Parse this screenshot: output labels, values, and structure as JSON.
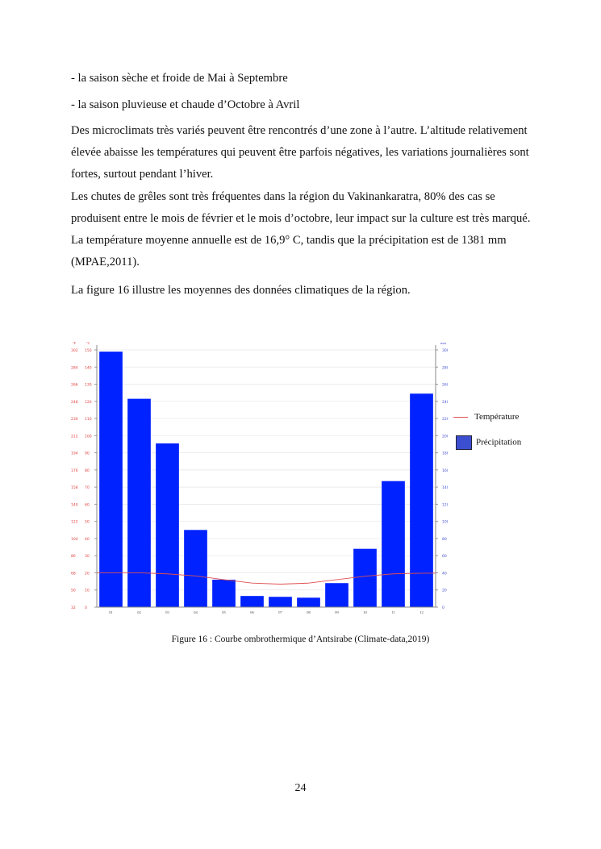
{
  "paragraphs": [
    "- la saison sèche et froide de Mai à Septembre",
    "- la saison pluvieuse et chaude d’Octobre à Avril",
    "Des microclimats très variés peuvent être rencontrés d’une zone à l’autre. L’altitude relativement élevée abaisse les températures qui peuvent être parfois négatives, les variations journalières sont fortes, surtout pendant l’hiver.",
    "Les chutes de grêles sont très fréquentes dans la région du Vakinankaratra, 80% des cas se produisent entre le mois de février et le mois d’octobre, leur impact sur la culture est très marqué. La température moyenne annuelle est de 16,9° C, tandis que la précipitation est de 1381 mm (MPAE,2011).",
    "La figure 16 illustre les moyennes des données climatiques de la région."
  ],
  "caption": "Figure 16 : Courbe ombrothermique d’Antsirabe (Climate-data,2019)",
  "page_number": "24",
  "chart_data": {
    "type": "bar",
    "categories": [
      "01",
      "02",
      "03",
      "04",
      "05",
      "06",
      "07",
      "08",
      "09",
      "10",
      "11",
      "12"
    ],
    "series": [
      {
        "name": "Précipitation",
        "type": "bar",
        "axis": "mm",
        "color": "#0022ff",
        "values": [
          298,
          243,
          191,
          90,
          32,
          13,
          12,
          11,
          28,
          68,
          147,
          249
        ]
      },
      {
        "name": "Température",
        "type": "line",
        "axis": "°C",
        "color": "#e05050",
        "values": [
          20,
          20,
          19.4,
          18.2,
          16,
          14,
          13.4,
          14,
          16,
          18,
          19.4,
          19.8
        ]
      }
    ],
    "left_axes": [
      {
        "unit": "°F",
        "ticks": [
          "32",
          "50",
          "68",
          "86",
          "104",
          "122",
          "140",
          "158",
          "176",
          "194",
          "212",
          "230",
          "248",
          "266",
          "284",
          "302"
        ]
      },
      {
        "unit": "°C",
        "ticks": [
          "0",
          "10",
          "20",
          "30",
          "40",
          "50",
          "60",
          "70",
          "80",
          "90",
          "100",
          "110",
          "120",
          "130",
          "140",
          "150"
        ],
        "ylim": [
          0,
          150
        ]
      }
    ],
    "right_axis": {
      "unit": "mm",
      "ylim": [
        0,
        300
      ],
      "ticks": [
        "0",
        "20",
        "40",
        "60",
        "80",
        "100",
        "120",
        "140",
        "160",
        "180",
        "200",
        "220",
        "240",
        "260",
        "280",
        "300"
      ]
    },
    "grid": true,
    "legend_placement": "right",
    "legend": [
      "Température",
      "Précipitation"
    ]
  }
}
